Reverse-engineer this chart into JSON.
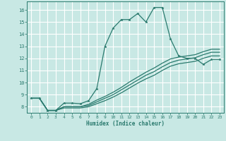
{
  "xlabel": "Humidex (Indice chaleur)",
  "bg_color": "#c8e8e4",
  "grid_color": "#ffffff",
  "line_color": "#2a7a6e",
  "xlim": [
    -0.5,
    23.5
  ],
  "ylim": [
    7.5,
    16.7
  ],
  "xticks": [
    0,
    1,
    2,
    3,
    4,
    5,
    6,
    7,
    8,
    9,
    10,
    11,
    12,
    13,
    14,
    15,
    16,
    17,
    18,
    19,
    20,
    21,
    22,
    23
  ],
  "yticks": [
    8,
    9,
    10,
    11,
    12,
    13,
    14,
    15,
    16
  ],
  "series1_x": [
    0,
    1,
    2,
    3,
    4,
    5,
    6,
    7,
    8,
    9,
    10,
    11,
    12,
    13,
    14,
    15,
    16,
    17,
    18,
    19,
    20,
    21,
    22,
    23
  ],
  "series1_y": [
    8.7,
    8.7,
    7.7,
    7.7,
    8.3,
    8.3,
    8.25,
    8.5,
    9.5,
    13.0,
    14.5,
    15.2,
    15.2,
    15.7,
    15.0,
    16.2,
    16.2,
    13.6,
    12.2,
    12.0,
    12.0,
    11.5,
    11.9,
    11.9
  ],
  "series2_x": [
    0,
    1,
    2,
    3,
    4,
    5,
    6,
    7,
    8,
    9,
    10,
    11,
    12,
    13,
    14,
    15,
    16,
    17,
    18,
    19,
    20,
    21,
    22,
    23
  ],
  "series2_y": [
    8.7,
    8.7,
    7.7,
    7.7,
    8.0,
    8.0,
    8.0,
    8.2,
    8.55,
    8.85,
    9.2,
    9.6,
    10.05,
    10.45,
    10.85,
    11.2,
    11.6,
    11.95,
    12.1,
    12.2,
    12.3,
    12.55,
    12.75,
    12.75
  ],
  "series3_x": [
    0,
    1,
    2,
    3,
    4,
    5,
    6,
    7,
    8,
    9,
    10,
    11,
    12,
    13,
    14,
    15,
    16,
    17,
    18,
    19,
    20,
    21,
    22,
    23
  ],
  "series3_y": [
    8.7,
    8.7,
    7.7,
    7.7,
    8.0,
    8.0,
    8.0,
    8.1,
    8.4,
    8.7,
    9.0,
    9.4,
    9.8,
    10.2,
    10.6,
    10.9,
    11.3,
    11.65,
    11.85,
    11.95,
    12.05,
    12.3,
    12.5,
    12.5
  ],
  "series4_x": [
    0,
    1,
    2,
    3,
    4,
    5,
    6,
    7,
    8,
    9,
    10,
    11,
    12,
    13,
    14,
    15,
    16,
    17,
    18,
    19,
    20,
    21,
    22,
    23
  ],
  "series4_y": [
    8.7,
    8.7,
    7.7,
    7.7,
    7.9,
    7.9,
    7.9,
    8.0,
    8.25,
    8.5,
    8.8,
    9.15,
    9.55,
    9.95,
    10.3,
    10.6,
    11.0,
    11.35,
    11.55,
    11.65,
    11.75,
    12.0,
    12.2,
    12.2
  ]
}
